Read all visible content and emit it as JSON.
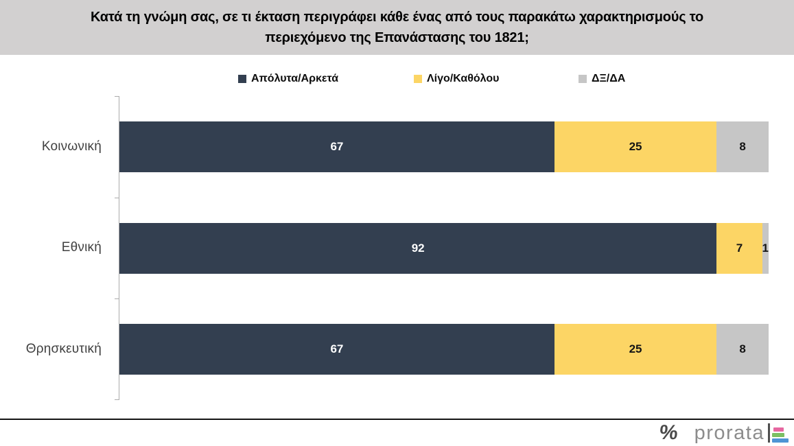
{
  "title": "Κατά τη γνώμη σας, σε τι έκταση περιγράφει κάθε ένας από τους παρακάτω χαρακτηρισμούς το περιεχόμενο της Επανάστασης του 1821;",
  "colors": {
    "title_bar_bg": "#d2d0d0",
    "axis": "#ababab",
    "category_label": "#404040",
    "footer_line": "#141414"
  },
  "chart_data": {
    "type": "bar",
    "orientation": "horizontal",
    "stacked": true,
    "categories": [
      "Κοινωνική",
      "Εθνική",
      "Θρησκευτική"
    ],
    "series": [
      {
        "name": "Απόλυτα/Αρκετά",
        "color": "#333f50",
        "label_color": "#ffffff",
        "values": [
          67,
          92,
          67
        ]
      },
      {
        "name": "Λίγο/Καθόλου",
        "color": "#fcd565",
        "label_color": "#141414",
        "values": [
          25,
          7,
          25
        ]
      },
      {
        "name": "ΔΞ/ΔΑ",
        "color": "#c6c6c6",
        "label_color": "#141414",
        "values": [
          8,
          1,
          8
        ]
      }
    ],
    "xlim": [
      0,
      100
    ],
    "grid": false,
    "legend_position": "top",
    "data_labels": true
  },
  "footer": {
    "percent_mark": "%",
    "brand": "prorata",
    "logo_bar_colors": [
      "#e667a0",
      "#7cbf63",
      "#4e94d4"
    ],
    "logo_bar_widths": [
      15,
      18,
      24
    ]
  }
}
